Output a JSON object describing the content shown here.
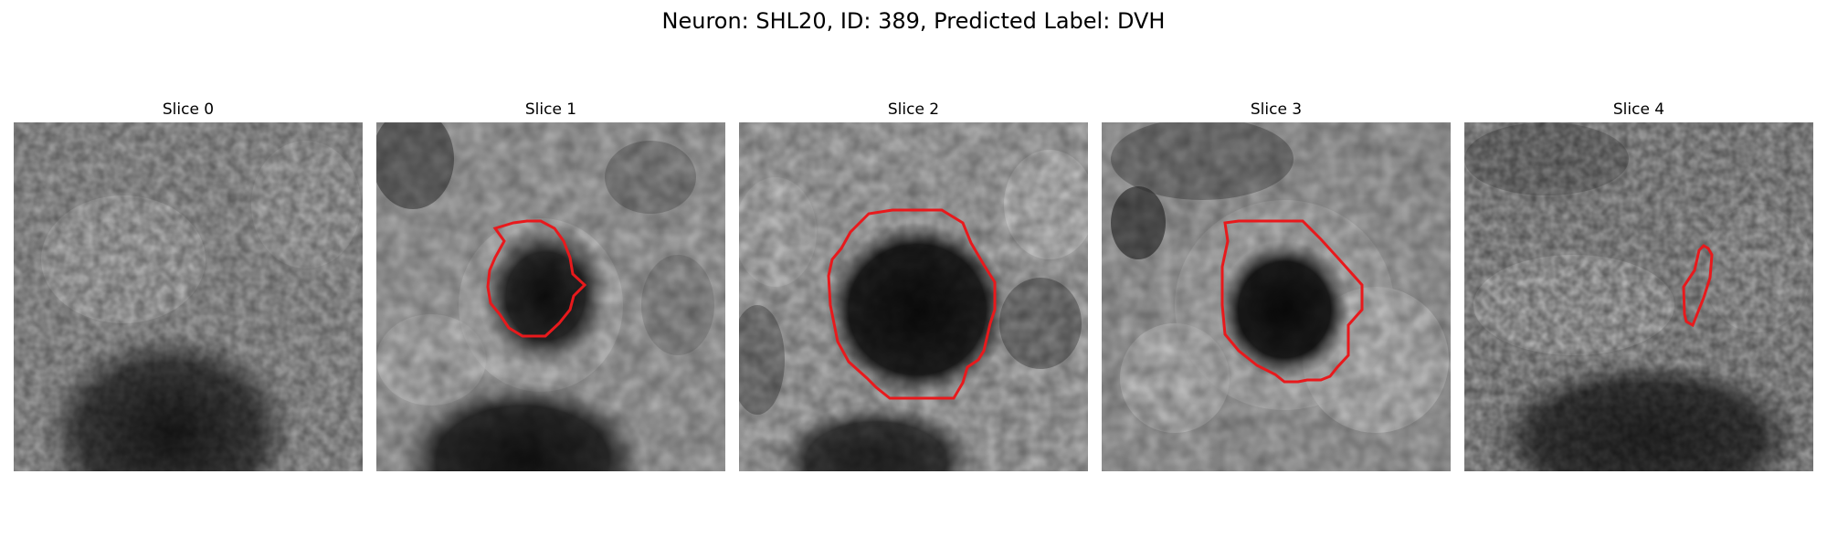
{
  "figure": {
    "title": "Neuron: SHL20, ID: 389, Predicted Label: DVH",
    "contour_color": "#e8191c"
  },
  "panels": [
    {
      "title": "Slice 0",
      "image": "grayscale microscopy slice, dark blob bottom-center, no contour"
    },
    {
      "title": "Slice 1",
      "image": "grayscale microscopy slice, dark cell center-right with red contour"
    },
    {
      "title": "Slice 2",
      "image": "grayscale microscopy slice, large dark cell center with red contour"
    },
    {
      "title": "Slice 3",
      "image": "grayscale microscopy slice, dark cell center-right with red contour"
    },
    {
      "title": "Slice 4",
      "image": "grayscale microscopy slice, small narrow red contour right of center"
    }
  ]
}
